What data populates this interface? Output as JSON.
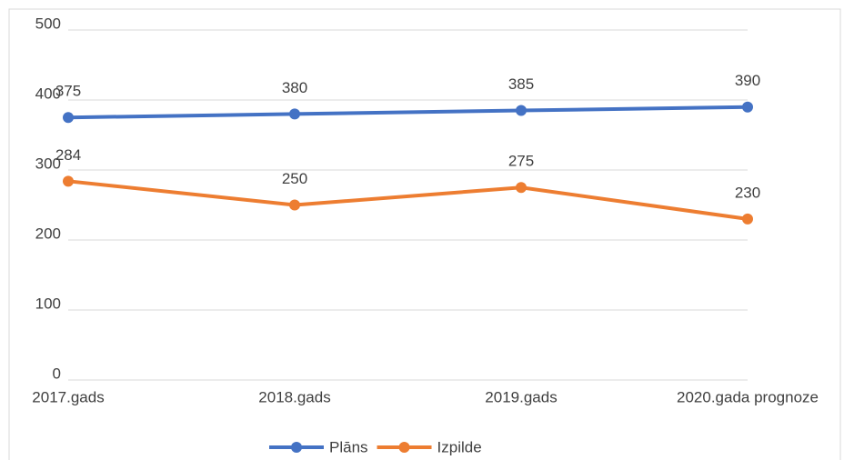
{
  "chart_data": {
    "type": "line",
    "categories": [
      "2017.gads",
      "2018.gads",
      "2019.gads",
      "2020.gada prognoze"
    ],
    "series": [
      {
        "name": "Plāns",
        "color": "#4472c4",
        "values": [
          375,
          380,
          385,
          390
        ]
      },
      {
        "name": "Izpilde",
        "color": "#ed7d31",
        "values": [
          284,
          250,
          275,
          230
        ]
      }
    ],
    "ylim": [
      0,
      500
    ],
    "yticks": [
      0,
      100,
      200,
      300,
      400,
      500
    ],
    "grid": true,
    "legend": "bottom"
  }
}
